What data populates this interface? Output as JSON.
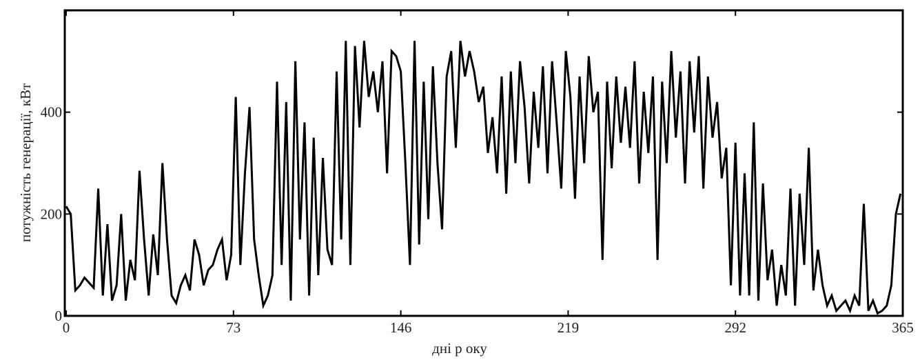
{
  "chart_data": {
    "type": "line",
    "xlabel": "дні р оку",
    "ylabel": "потужність генерації, кВт",
    "xlim": [
      0,
      365
    ],
    "xticks": [
      0,
      73,
      146,
      219,
      292,
      365
    ],
    "ylim": [
      0,
      600
    ],
    "yticks": [
      0,
      200,
      400
    ],
    "x": [
      0,
      2,
      4,
      6,
      8,
      10,
      12,
      14,
      16,
      18,
      20,
      22,
      24,
      26,
      28,
      30,
      32,
      34,
      36,
      38,
      40,
      42,
      44,
      46,
      48,
      50,
      52,
      54,
      56,
      58,
      60,
      62,
      64,
      66,
      68,
      70,
      72,
      74,
      76,
      78,
      80,
      82,
      84,
      86,
      88,
      90,
      92,
      94,
      96,
      98,
      100,
      102,
      104,
      106,
      108,
      110,
      112,
      114,
      116,
      118,
      120,
      122,
      124,
      126,
      128,
      130,
      132,
      134,
      136,
      138,
      140,
      142,
      144,
      146,
      148,
      150,
      152,
      154,
      156,
      158,
      160,
      162,
      164,
      166,
      168,
      170,
      172,
      174,
      176,
      178,
      180,
      182,
      184,
      186,
      188,
      190,
      192,
      194,
      196,
      198,
      200,
      202,
      204,
      206,
      208,
      210,
      212,
      214,
      216,
      218,
      220,
      222,
      224,
      226,
      228,
      230,
      232,
      234,
      236,
      238,
      240,
      242,
      244,
      246,
      248,
      250,
      252,
      254,
      256,
      258,
      260,
      262,
      264,
      266,
      268,
      270,
      272,
      274,
      276,
      278,
      280,
      282,
      284,
      286,
      288,
      290,
      292,
      294,
      296,
      298,
      300,
      302,
      304,
      306,
      308,
      310,
      312,
      314,
      316,
      318,
      320,
      322,
      324,
      326,
      328,
      330,
      332,
      334,
      336,
      338,
      340,
      342,
      344,
      346,
      348,
      350,
      352,
      354,
      356,
      358,
      360,
      362,
      364
    ],
    "series": [
      {
        "color": "#000000",
        "values": [
          215,
          200,
          50,
          60,
          75,
          65,
          55,
          250,
          40,
          180,
          30,
          60,
          200,
          30,
          110,
          70,
          285,
          150,
          40,
          160,
          80,
          300,
          150,
          40,
          25,
          60,
          80,
          50,
          150,
          120,
          60,
          90,
          100,
          130,
          150,
          70,
          120,
          430,
          100,
          280,
          410,
          150,
          80,
          20,
          40,
          80,
          460,
          100,
          420,
          30,
          500,
          150,
          380,
          40,
          350,
          80,
          310,
          130,
          100,
          480,
          150,
          540,
          100,
          530,
          370,
          540,
          430,
          480,
          400,
          500,
          280,
          520,
          510,
          480,
          300,
          100,
          540,
          140,
          460,
          190,
          490,
          300,
          170,
          470,
          520,
          330,
          540,
          470,
          520,
          480,
          420,
          450,
          320,
          390,
          280,
          470,
          240,
          480,
          300,
          500,
          410,
          260,
          440,
          330,
          490,
          280,
          500,
          380,
          250,
          520,
          430,
          230,
          470,
          300,
          510,
          400,
          440,
          110,
          460,
          290,
          470,
          340,
          450,
          330,
          500,
          260,
          440,
          320,
          470,
          110,
          460,
          300,
          520,
          350,
          480,
          260,
          500,
          360,
          510,
          250,
          470,
          350,
          420,
          270,
          330,
          60,
          340,
          40,
          280,
          40,
          380,
          30,
          260,
          70,
          130,
          20,
          100,
          40,
          250,
          20,
          240,
          100,
          330,
          50,
          130,
          60,
          20,
          40,
          10,
          20,
          30,
          10,
          40,
          20,
          220,
          10,
          30,
          5,
          10,
          20,
          60,
          200,
          240
        ]
      }
    ]
  }
}
